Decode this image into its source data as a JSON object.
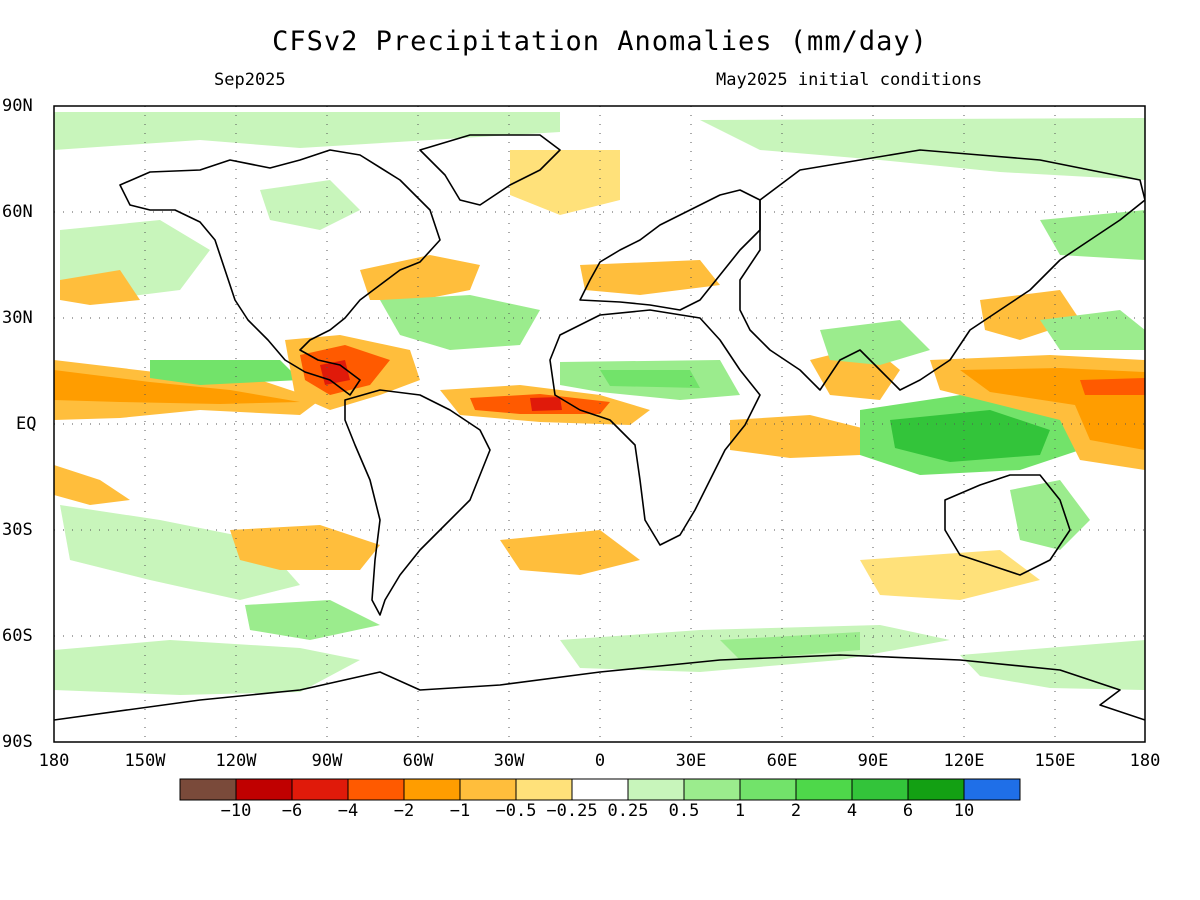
{
  "title": "CFSv2 Precipitation Anomalies (mm/day)",
  "valid_month": "Sep2025",
  "initial_conditions": "May2025 initial conditions",
  "lat_labels": [
    "90N",
    "60N",
    "30N",
    "EQ",
    "30S",
    "60S",
    "90S"
  ],
  "lon_labels": [
    "180",
    "150W",
    "120W",
    "90W",
    "60W",
    "30W",
    "0",
    "30E",
    "60E",
    "90E",
    "120E",
    "150E",
    "180"
  ],
  "colorbar": {
    "colors": [
      "#7a4a3a",
      "#c00000",
      "#e01a0a",
      "#ff5a00",
      "#ff9d00",
      "#ffbe3c",
      "#ffe17a",
      "#ffffff",
      "#c8f5bb",
      "#9bec8d",
      "#72e36a",
      "#4ed84a",
      "#33c43a",
      "#13a013",
      "#1f6fe8"
    ],
    "labels": [
      "−10",
      "−6",
      "−4",
      "−2",
      "−1",
      "−0.5",
      "−0.25",
      "0.25",
      "0.5",
      "1",
      "2",
      "4",
      "6",
      "10"
    ]
  },
  "colors": {
    "dry_strong": "#ff8a00",
    "dry_moderate": "#ffbe3c",
    "dry_weak": "#ffe17a",
    "wet_weak": "#c8f5bb",
    "wet_moderate": "#9bec8d",
    "wet_strong": "#4ed84a",
    "wet_very_strong": "#2fb82f",
    "coastline": "#000000",
    "grid": "#555555"
  }
}
